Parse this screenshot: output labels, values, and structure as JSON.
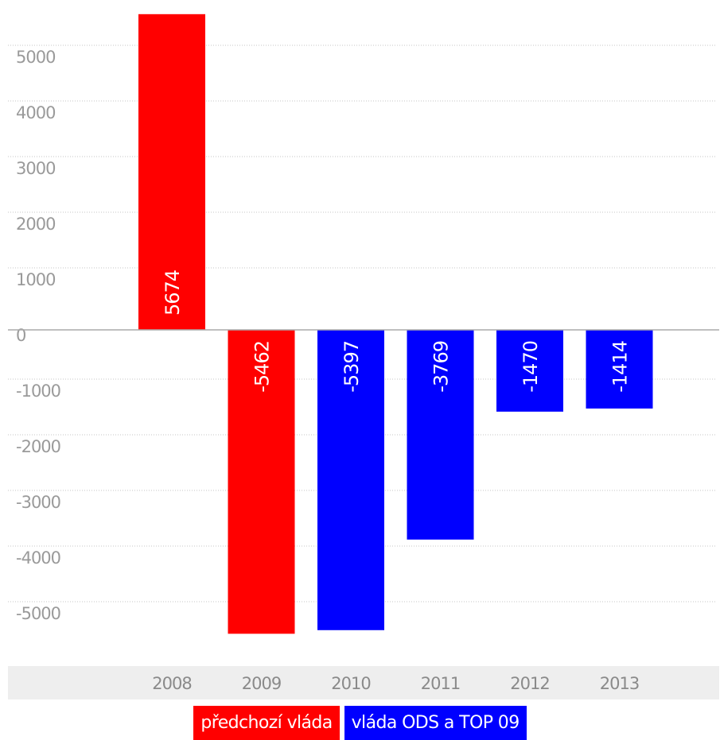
{
  "chart_data": {
    "type": "bar",
    "categories": [
      "2008",
      "2009",
      "2010",
      "2011",
      "2012",
      "2013"
    ],
    "values": [
      5674,
      -5462,
      -5397,
      -3769,
      -1470,
      -1414
    ],
    "bar_labels": [
      "5674",
      "-5462",
      "-5397",
      "-3769",
      "-1470",
      "-1414"
    ],
    "bar_series": [
      0,
      0,
      1,
      1,
      1,
      1
    ],
    "series": [
      {
        "name": "předchozí vláda",
        "color": "#ff0000"
      },
      {
        "name": "vláda ODS a TOP 09",
        "color": "#0000ff"
      }
    ],
    "yticks": [
      5000,
      4000,
      3000,
      2000,
      1000,
      0,
      -1000,
      -2000,
      -3000,
      -4000,
      -5000
    ],
    "ytick_labels": [
      "5000",
      "4000",
      "3000",
      "2000",
      "1000",
      "0",
      "-1000",
      "-2000",
      "-3000",
      "-4000",
      "-5000"
    ],
    "ylim": [
      -5500,
      5700
    ],
    "grid": true,
    "legend_position": "bottom-center",
    "title": "",
    "xlabel": "",
    "ylabel": ""
  }
}
